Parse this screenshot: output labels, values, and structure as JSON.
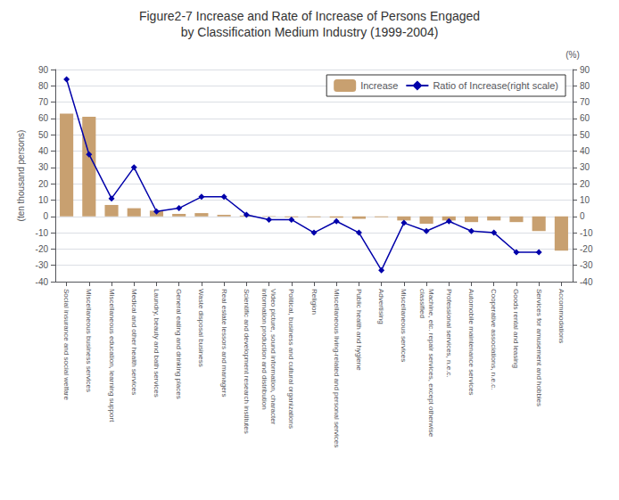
{
  "chart_data": {
    "type": "bar",
    "title": "Figure2-7 Increase and Rate of Increase of Persons Engaged",
    "subtitle": "by Classification Medium Industry (1999-2004)",
    "ylabel": "(ten thousand persons)",
    "y2label": "(%)",
    "categories": [
      "Social insurance and social welfare",
      "Miscellaneous business services",
      "Miscellaneous education, learning support",
      "Medical and other health services",
      "Laundry, beauty and bath services",
      "General eating and drinking places",
      "Waste disposal business",
      "Real estate lessors and managers",
      "Scientific and development research institutes",
      "Video picture, sound information, character\ninformation production and distribution",
      "Political, business and cultural organizations",
      "Religion",
      "Miscellaneous living-related and personal services",
      "Public health and hygiene",
      "Advertising",
      "Miscellaneous services",
      "Machine, etc. repair services, except otherwise\nclassified",
      "Professional services, n.e.c.",
      "Automobile maintenance services",
      "Cooperative associations, n.e.c.",
      "Goods rental and leasing",
      "Services for amusement and hobbies",
      "Accommodations"
    ],
    "series": [
      {
        "name": "Increase",
        "type": "bar",
        "color": "#C8A070",
        "values": [
          63,
          61,
          7,
          5,
          3.5,
          1.5,
          2,
          1,
          0.5,
          0.2,
          -0.5,
          -0.5,
          -0.8,
          -1.5,
          -0.5,
          -2.5,
          -4.5,
          -2.5,
          -3.5,
          -2.5,
          -3.5,
          -9,
          -21
        ]
      },
      {
        "name": "Ratio of Increase(right scale)",
        "type": "line",
        "axis": "y2",
        "color": "#0000AA",
        "marker": "diamond",
        "values": [
          84,
          38,
          11,
          30,
          3,
          5,
          12,
          12,
          1,
          -2,
          -2,
          -10,
          -3,
          -10,
          -33,
          -4,
          -9,
          -3,
          -9,
          -10,
          -22,
          -22,
          null
        ]
      }
    ],
    "ylim": [
      -40,
      90
    ],
    "yticks": [
      -40,
      -30,
      -20,
      -10,
      0,
      10,
      20,
      30,
      40,
      50,
      60,
      70,
      80,
      90
    ],
    "y2lim": [
      -40,
      90
    ],
    "y2ticks": [
      -40,
      -30,
      -20,
      -10,
      0,
      10,
      20,
      30,
      40,
      50,
      60,
      70,
      80,
      90
    ],
    "grid": true,
    "legend": "upper right"
  }
}
